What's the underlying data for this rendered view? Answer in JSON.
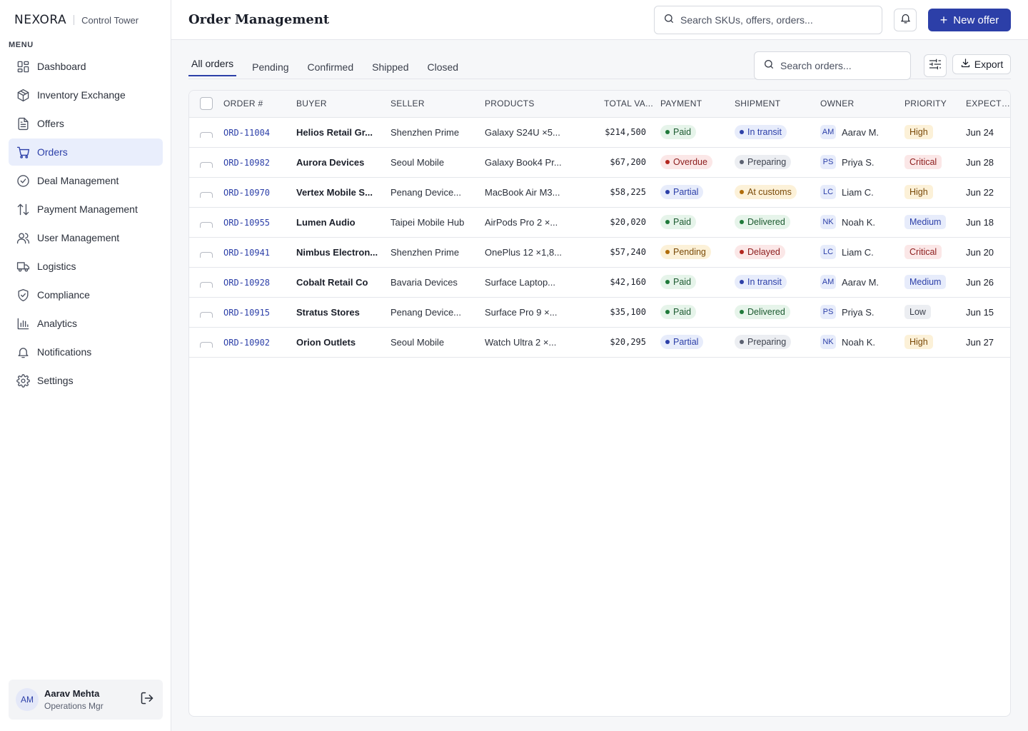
{
  "brand": {
    "logo": "NEXORA",
    "subtitle": "Control Tower"
  },
  "sidebar": {
    "menu_label": "MENU",
    "items": [
      {
        "label": "Dashboard",
        "icon": "dashboard-icon"
      },
      {
        "label": "Inventory Exchange",
        "icon": "box-icon"
      },
      {
        "label": "Offers",
        "icon": "document-icon"
      },
      {
        "label": "Orders",
        "icon": "cart-icon",
        "active": true
      },
      {
        "label": "Deal Management",
        "icon": "check-circle-icon"
      },
      {
        "label": "Payment Management",
        "icon": "arrows-updown-icon"
      },
      {
        "label": "User Management",
        "icon": "users-icon"
      },
      {
        "label": "Logistics",
        "icon": "truck-icon"
      },
      {
        "label": "Compliance",
        "icon": "shield-check-icon"
      },
      {
        "label": "Analytics",
        "icon": "bar-chart-icon"
      },
      {
        "label": "Notifications",
        "icon": "bell-icon"
      },
      {
        "label": "Settings",
        "icon": "gear-icon"
      }
    ],
    "user": {
      "initials": "AM",
      "name": "Aarav Mehta",
      "role": "Operations Mgr"
    }
  },
  "header": {
    "title": "Order Management",
    "search_placeholder": "Search SKUs, offers, orders...",
    "new_offer_label": "New offer"
  },
  "toolbar": {
    "tabs": [
      "All orders",
      "Pending",
      "Confirmed",
      "Shipped",
      "Closed"
    ],
    "active_tab": "All orders",
    "search_placeholder": "Search orders...",
    "export_label": "Export"
  },
  "table": {
    "columns": [
      "ORDER #",
      "BUYER",
      "SELLER",
      "PRODUCTS",
      "TOTAL VA...",
      "PAYMENT",
      "SHIPMENT",
      "OWNER",
      "PRIORITY",
      "EXPECTED"
    ],
    "rows": [
      {
        "order": "ORD-11004",
        "buyer": "Helios Retail Gr...",
        "seller": "Shenzhen Prime",
        "products": "Galaxy S24U ×5...",
        "total": "$214,500",
        "payment": "Paid",
        "payment_color": "green",
        "shipment": "In transit",
        "shipment_color": "blue",
        "owner_initials": "AM",
        "owner": "Aarav M.",
        "priority": "High",
        "expected": "Jun 24"
      },
      {
        "order": "ORD-10982",
        "buyer": "Aurora Devices",
        "seller": "Seoul Mobile",
        "products": "Galaxy Book4 Pr...",
        "total": "$67,200",
        "payment": "Overdue",
        "payment_color": "red",
        "shipment": "Preparing",
        "shipment_color": "gray",
        "owner_initials": "PS",
        "owner": "Priya S.",
        "priority": "Critical",
        "expected": "Jun 28"
      },
      {
        "order": "ORD-10970",
        "buyer": "Vertex Mobile S...",
        "seller": "Penang Device...",
        "products": "MacBook Air M3...",
        "total": "$58,225",
        "payment": "Partial",
        "payment_color": "blue",
        "shipment": "At customs",
        "shipment_color": "amber",
        "owner_initials": "LC",
        "owner": "Liam C.",
        "priority": "High",
        "expected": "Jun 22"
      },
      {
        "order": "ORD-10955",
        "buyer": "Lumen Audio",
        "seller": "Taipei Mobile Hub",
        "products": "AirPods Pro 2 ×...",
        "total": "$20,020",
        "payment": "Paid",
        "payment_color": "green",
        "shipment": "Delivered",
        "shipment_color": "green",
        "owner_initials": "NK",
        "owner": "Noah K.",
        "priority": "Medium",
        "expected": "Jun 18"
      },
      {
        "order": "ORD-10941",
        "buyer": "Nimbus Electron...",
        "seller": "Shenzhen Prime",
        "products": "OnePlus 12 ×1,8...",
        "total": "$57,240",
        "payment": "Pending",
        "payment_color": "amber",
        "shipment": "Delayed",
        "shipment_color": "red",
        "owner_initials": "LC",
        "owner": "Liam C.",
        "priority": "Critical",
        "expected": "Jun 20"
      },
      {
        "order": "ORD-10928",
        "buyer": "Cobalt Retail Co",
        "seller": "Bavaria Devices",
        "products": "Surface Laptop...",
        "total": "$42,160",
        "payment": "Paid",
        "payment_color": "green",
        "shipment": "In transit",
        "shipment_color": "blue",
        "owner_initials": "AM",
        "owner": "Aarav M.",
        "priority": "Medium",
        "expected": "Jun 26"
      },
      {
        "order": "ORD-10915",
        "buyer": "Stratus Stores",
        "seller": "Penang Device...",
        "products": "Surface Pro 9 ×...",
        "total": "$35,100",
        "payment": "Paid",
        "payment_color": "green",
        "shipment": "Delivered",
        "shipment_color": "green",
        "owner_initials": "PS",
        "owner": "Priya S.",
        "priority": "Low",
        "expected": "Jun 15"
      },
      {
        "order": "ORD-10902",
        "buyer": "Orion Outlets",
        "seller": "Seoul Mobile",
        "products": "Watch Ultra 2 ×...",
        "total": "$20,295",
        "payment": "Partial",
        "payment_color": "blue",
        "shipment": "Preparing",
        "shipment_color": "gray",
        "owner_initials": "NK",
        "owner": "Noah K.",
        "priority": "High",
        "expected": "Jun 27"
      }
    ]
  },
  "colors": {
    "accent": "#2c3fa8",
    "active_nav_bg": "#e9eefc"
  }
}
